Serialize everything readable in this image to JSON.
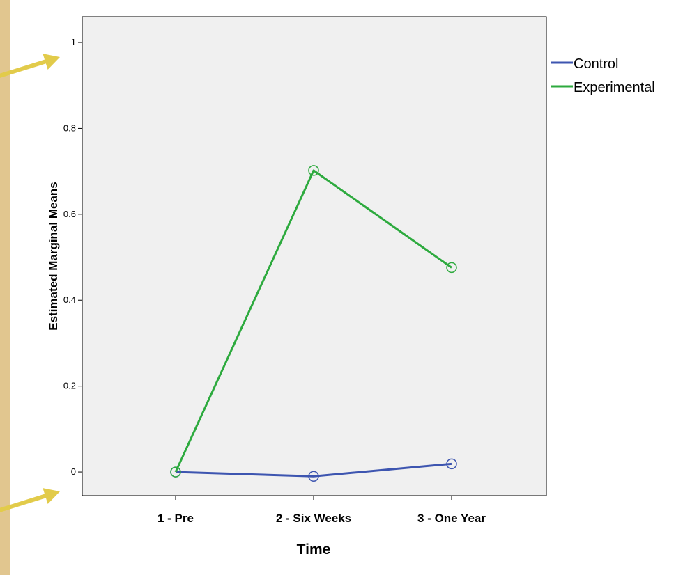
{
  "chart_data": {
    "type": "line",
    "title": "",
    "xlabel": "Time",
    "ylabel": "Estimated Marginal Means",
    "categories": [
      "1 - Pre",
      "2 - Six Weeks",
      "3 - One Year"
    ],
    "ylim": [
      -0.055,
      1.06
    ],
    "yticks": [
      0,
      0.2,
      0.4,
      0.6,
      0.8,
      1
    ],
    "ytick_labels": [
      "0",
      "0.2",
      "0.4",
      "0.6",
      "0.8",
      "1"
    ],
    "grid": false,
    "legend_position": "right-top",
    "background": "#f0f0f0",
    "series": [
      {
        "name": "Control",
        "values": [
          0.0,
          -0.01,
          0.019
        ],
        "color": "#3d55b0"
      },
      {
        "name": "Experimental",
        "values": [
          0.0,
          0.702,
          0.476
        ],
        "color": "#2daa3e"
      }
    ]
  },
  "decorations": {
    "arrow_color": "#e2cb4a",
    "arrow_count": 2,
    "paper_color": "#e7cf9c"
  }
}
